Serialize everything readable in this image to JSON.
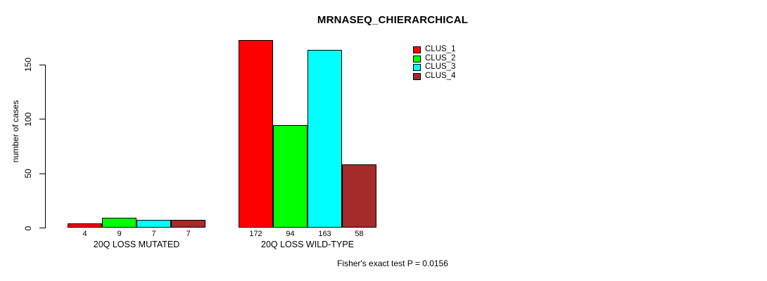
{
  "chart_data": {
    "type": "bar",
    "title": "MRNASEQ_CHIERARCHICAL",
    "ylabel": "number of cases",
    "xlabel": "",
    "categories": [
      "20Q LOSS MUTATED",
      "20Q LOSS WILD-TYPE"
    ],
    "series": [
      {
        "name": "CLUS_1",
        "color": "#ff0000",
        "values": [
          4,
          172
        ]
      },
      {
        "name": "CLUS_2",
        "color": "#00ff00",
        "values": [
          9,
          94
        ]
      },
      {
        "name": "CLUS_3",
        "color": "#00ffff",
        "values": [
          7,
          163
        ]
      },
      {
        "name": "CLUS_4",
        "color": "#a52a2a",
        "values": [
          7,
          58
        ]
      }
    ],
    "yticks": [
      0,
      50,
      100,
      150
    ],
    "ylim": [
      0,
      175
    ],
    "grid": false,
    "bar_value_labels": true,
    "legend_position": "top-right-inside",
    "annotation": "Fisher's exact test P = 0.0156"
  }
}
